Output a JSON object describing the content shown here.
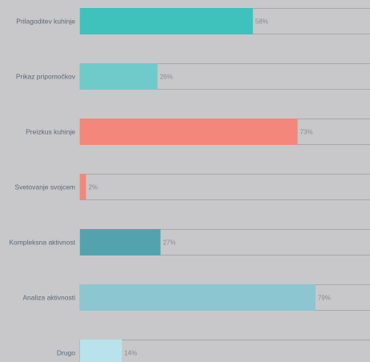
{
  "chart_data": {
    "type": "bar",
    "orientation": "horizontal",
    "categories": [
      "Prilagoditev kuhinje",
      "Prikaz pripomočkov",
      "Preizkus kuhinje",
      "Svetovanje svojcem",
      "Kompleksna aktivnost",
      "Analiza aktivnosti",
      "Drugo"
    ],
    "values": [
      58,
      26,
      73,
      2,
      27,
      79,
      14
    ],
    "value_labels": [
      "58%",
      "26%",
      "73%",
      "2%",
      "27%",
      "79%",
      "14%"
    ],
    "unit": "%",
    "xlim": [
      0,
      100
    ],
    "colors": [
      "#3fc1bc",
      "#6fcbca",
      "#f4877b",
      "#f4877b",
      "#52a3ae",
      "#8cc6d0",
      "#b8e3ec"
    ],
    "grid": false,
    "legend": "none"
  }
}
